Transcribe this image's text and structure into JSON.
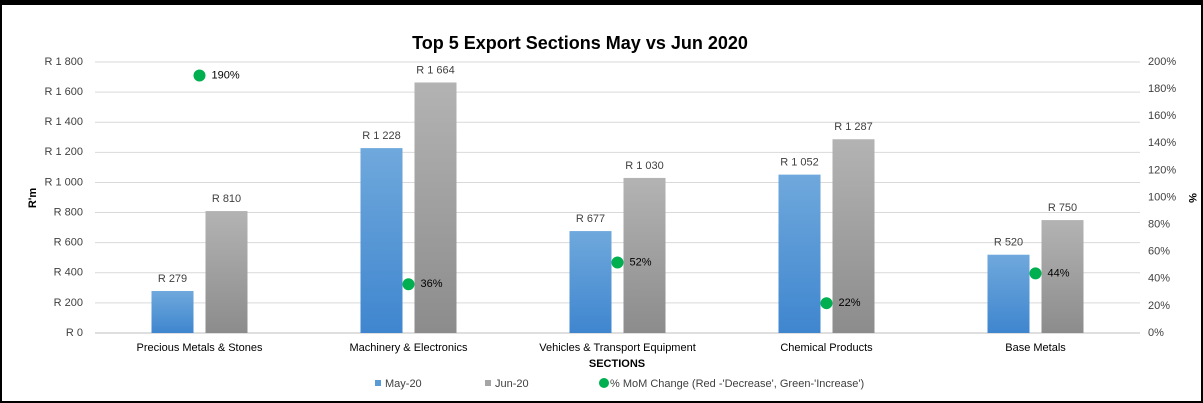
{
  "chart_data": {
    "type": "bar",
    "title": "Top 5 Export Sections May vs Jun 2020",
    "x_label": "SECTIONS",
    "y_label": "R'm",
    "y2_label": "%",
    "categories": [
      "Precious Metals & Stones",
      "Machinery & Electronics",
      "Vehicles & Transport Equipment",
      "Chemical Products",
      "Base Metals"
    ],
    "series": [
      {
        "name": "May-20",
        "color": "#5b9bd5",
        "values": [
          279,
          1228,
          677,
          1052,
          520
        ],
        "value_labels": [
          "R 279",
          "R 1 228",
          "R 677",
          "R 1 052",
          "R 520"
        ]
      },
      {
        "name": "Jun-20",
        "color": "#a5a5a5",
        "values": [
          810,
          1664,
          1030,
          1287,
          750
        ],
        "value_labels": [
          "R 810",
          "R 1 664",
          "R 1 030",
          "R 1 287",
          "R 750"
        ]
      },
      {
        "name": "% MoM Change (Red -'Decrease', Green-'Increase')",
        "type": "scatter",
        "axis": "y2",
        "color": "#00b050",
        "values": [
          190,
          36,
          52,
          22,
          44
        ],
        "value_labels": [
          "190%",
          "36%",
          "52%",
          "22%",
          "44%"
        ]
      }
    ],
    "ylim": [
      0,
      1800
    ],
    "yticks": [
      {
        "value": 0,
        "label": "R 0"
      },
      {
        "value": 200,
        "label": "R 200"
      },
      {
        "value": 400,
        "label": "R 400"
      },
      {
        "value": 600,
        "label": "R 600"
      },
      {
        "value": 800,
        "label": "R 800"
      },
      {
        "value": 1000,
        "label": "R 1 000"
      },
      {
        "value": 1200,
        "label": "R 1 200"
      },
      {
        "value": 1400,
        "label": "R 1 400"
      },
      {
        "value": 1600,
        "label": "R 1 600"
      },
      {
        "value": 1800,
        "label": "R 1 800"
      }
    ],
    "y2lim": [
      0,
      200
    ],
    "y2ticks": [
      {
        "value": 0,
        "label": "0%"
      },
      {
        "value": 20,
        "label": "20%"
      },
      {
        "value": 40,
        "label": "40%"
      },
      {
        "value": 60,
        "label": "60%"
      },
      {
        "value": 80,
        "label": "80%"
      },
      {
        "value": 100,
        "label": "100%"
      },
      {
        "value": 120,
        "label": "120%"
      },
      {
        "value": 140,
        "label": "140%"
      },
      {
        "value": 160,
        "label": "160%"
      },
      {
        "value": 180,
        "label": "180%"
      },
      {
        "value": 200,
        "label": "200%"
      }
    ],
    "grid": true,
    "legend": "bottom"
  }
}
